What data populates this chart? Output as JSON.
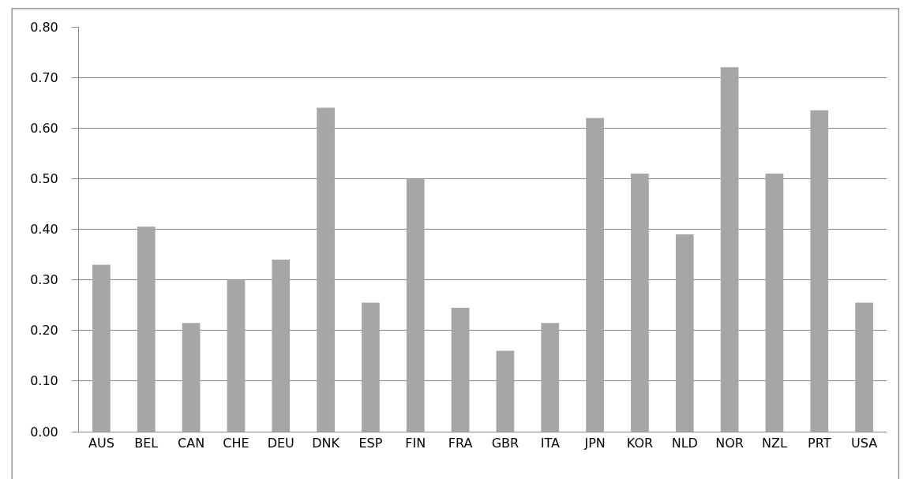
{
  "chart_data": {
    "type": "bar",
    "categories": [
      "AUS",
      "BEL",
      "CAN",
      "CHE",
      "DEU",
      "DNK",
      "ESP",
      "FIN",
      "FRA",
      "GBR",
      "ITA",
      "JPN",
      "KOR",
      "NLD",
      "NOR",
      "NZL",
      "PRT",
      "USA"
    ],
    "values": [
      0.33,
      0.405,
      0.215,
      0.3,
      0.34,
      0.64,
      0.255,
      0.5,
      0.245,
      0.16,
      0.215,
      0.62,
      0.51,
      0.39,
      0.72,
      0.51,
      0.635,
      0.255
    ],
    "color": "#a6a6a6",
    "ylim": [
      0,
      0.8
    ],
    "yticks": [
      {
        "value": 0,
        "label": "0.00"
      },
      {
        "value": 0.1,
        "label": "0.10"
      },
      {
        "value": 0.2,
        "label": "0.20"
      },
      {
        "value": 0.3,
        "label": "0.30"
      },
      {
        "value": 0.4,
        "label": "0.40"
      },
      {
        "value": 0.5,
        "label": "0.50"
      },
      {
        "value": 0.6,
        "label": "0.60"
      },
      {
        "value": 0.7,
        "label": "0.70"
      },
      {
        "value": 0.8,
        "label": "0.80"
      }
    ],
    "grid": "y"
  }
}
